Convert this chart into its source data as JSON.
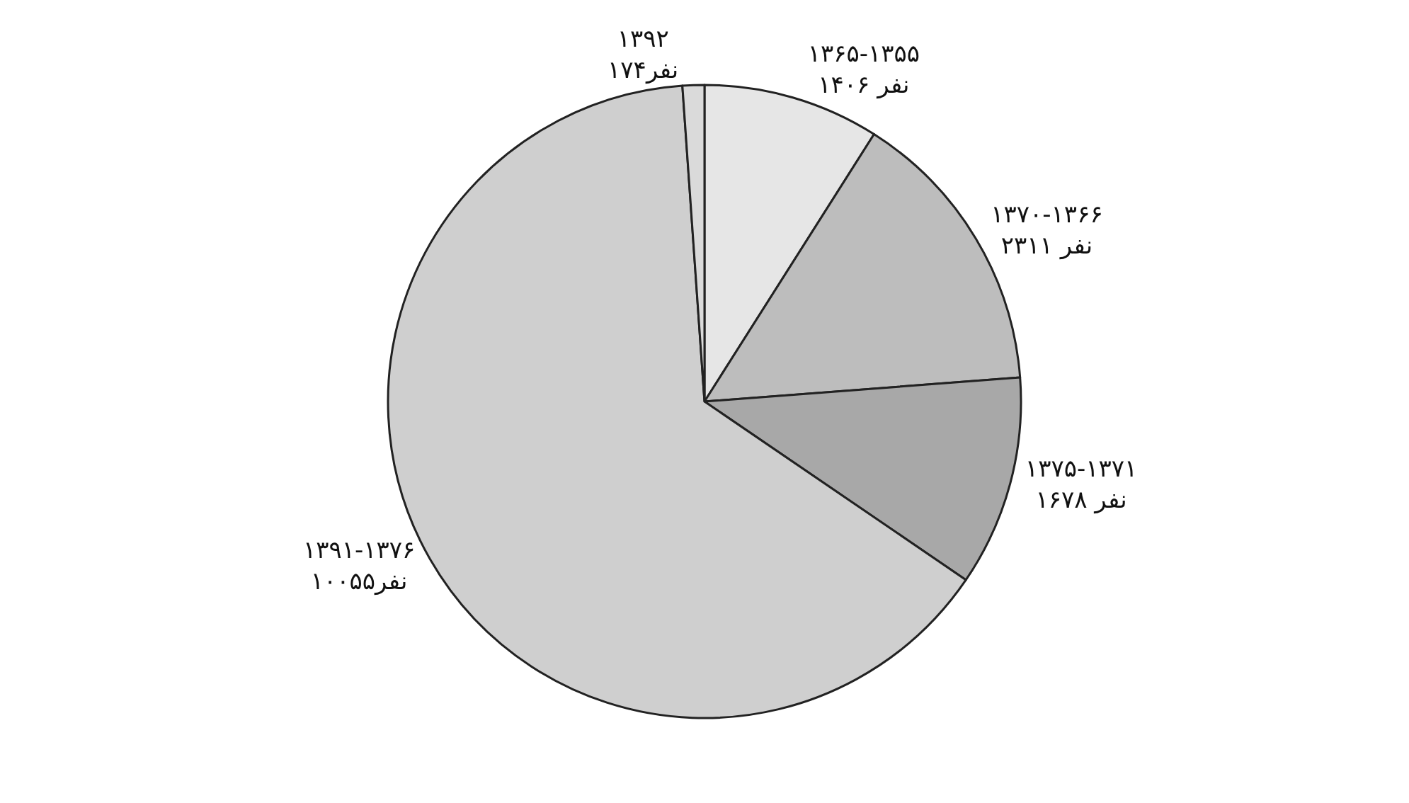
{
  "chart_data": {
    "type": "pie",
    "categories": [
      "۱۳۶۵-۱۳۵۵",
      "۱۳۷۰-۱۳۶۶",
      "۱۳۷۵-۱۳۷۱",
      "۱۳۹۱-۱۳۷۶",
      "۱۳۹۲"
    ],
    "values": [
      1406,
      2311,
      1678,
      10055,
      174
    ],
    "value_labels": [
      "۱۴۰۶ نفر",
      "۲۳۱۱ نفر",
      "۱۶۷۸ نفر",
      "۱۰۰۵۵نفر",
      "۱۷۴نفر"
    ],
    "colors": [
      "#e6e6e6",
      "#bdbdbd",
      "#a8a8a8",
      "#cfcfcf",
      "#dadada"
    ],
    "legend": false
  }
}
